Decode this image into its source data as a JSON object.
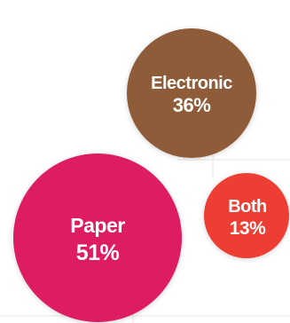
{
  "chart_data": {
    "type": "bubble",
    "title": "",
    "series": [
      {
        "label": "Electronic",
        "percent_text": "36%",
        "value": 36,
        "color": "#8e5b37"
      },
      {
        "label": "Paper",
        "percent_text": "51%",
        "value": 51,
        "color": "#de1a62"
      },
      {
        "label": "Both",
        "percent_text": "13%",
        "value": 13,
        "color": "#ee3e33"
      }
    ],
    "background": "#ffffff"
  }
}
